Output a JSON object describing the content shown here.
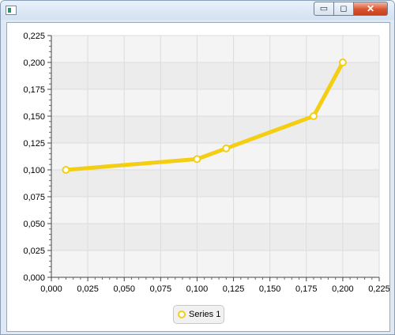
{
  "window": {
    "minimize_glyph": "▭",
    "maximize_glyph": "◻",
    "close_glyph": "✕"
  },
  "chart_data": {
    "type": "line",
    "x": [
      0.01,
      0.1,
      0.12,
      0.18,
      0.2
    ],
    "series": [
      {
        "name": "Series 1",
        "values": [
          0.1,
          0.11,
          0.12,
          0.15,
          0.2
        ],
        "color": "#f3ce13"
      }
    ],
    "xlim": [
      0,
      0.225
    ],
    "ylim": [
      0,
      0.225
    ],
    "x_ticks": [
      "0,000",
      "0,025",
      "0,050",
      "0,075",
      "0,100",
      "0,125",
      "0,150",
      "0,175",
      "0,200",
      "0,225"
    ],
    "y_ticks": [
      "0,000",
      "0,025",
      "0,050",
      "0,075",
      "0,100",
      "0,125",
      "0,150",
      "0,175",
      "0,200",
      "0,225"
    ],
    "grid": true,
    "legend": "bottom-center",
    "title": "",
    "xlabel": "",
    "ylabel": ""
  },
  "legend": {
    "label": "Series 1"
  },
  "colors": {
    "series": "#f3ce13",
    "plot_band_light": "#f4f4f4",
    "plot_band_dark": "#ececec",
    "gridline": "#dcdcdc"
  }
}
